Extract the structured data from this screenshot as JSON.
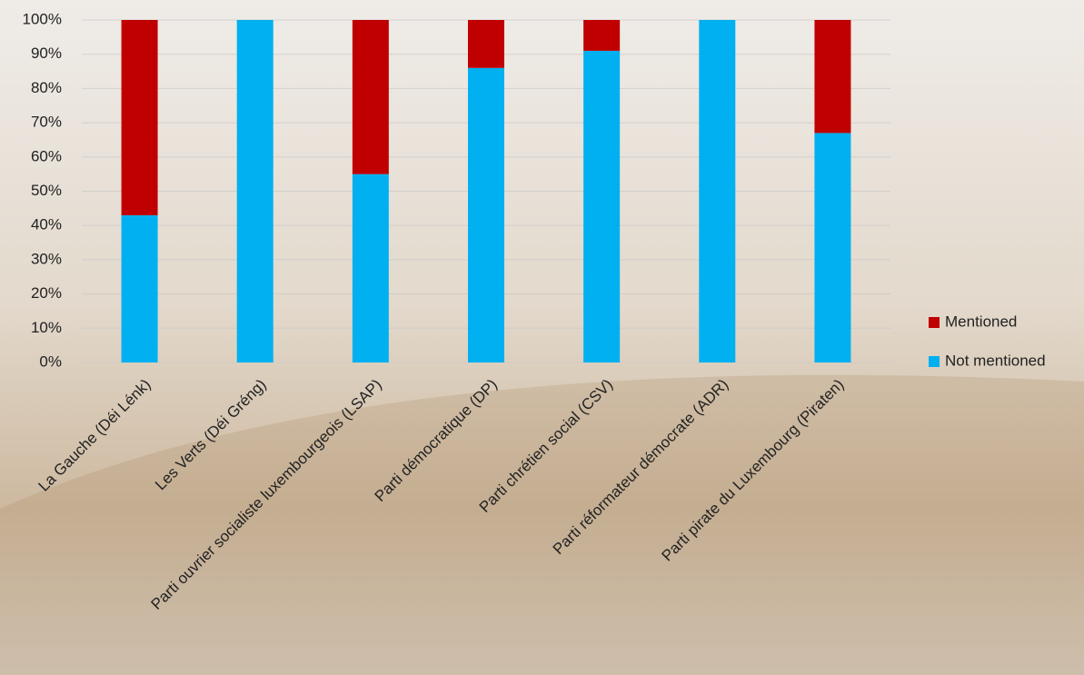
{
  "chart_data": {
    "type": "stacked_bar",
    "categories": [
      "La Gauche (Déi Lénk)",
      "Les Verts (Déi Gréng)",
      "Parti ouvrier socialiste luxembourgeois (LSAP)",
      "Parti démocratique (DP)",
      "Parti chrétien social (CSV)",
      "Parti réformateur démocrate (ADR)",
      "Parti pirate du Luxembourg (Piraten)"
    ],
    "series": [
      {
        "name": "Not mentioned",
        "color": "#00b0f0",
        "values": [
          43,
          100,
          55,
          86,
          91,
          100,
          67
        ]
      },
      {
        "name": "Mentioned",
        "color": "#c00000",
        "values": [
          57,
          0,
          45,
          14,
          9,
          0,
          33
        ]
      }
    ],
    "ylim": [
      0,
      100
    ],
    "yticks": [
      {
        "value": 0,
        "label": "0%"
      },
      {
        "value": 10,
        "label": "10%"
      },
      {
        "value": 20,
        "label": "20%"
      },
      {
        "value": 30,
        "label": "30%"
      },
      {
        "value": 40,
        "label": "40%"
      },
      {
        "value": 50,
        "label": "50%"
      },
      {
        "value": 60,
        "label": "60%"
      },
      {
        "value": 70,
        "label": "70%"
      },
      {
        "value": 80,
        "label": "80%"
      },
      {
        "value": 90,
        "label": "90%"
      },
      {
        "value": 100,
        "label": "100%"
      }
    ],
    "grid": true,
    "legend": "right"
  }
}
